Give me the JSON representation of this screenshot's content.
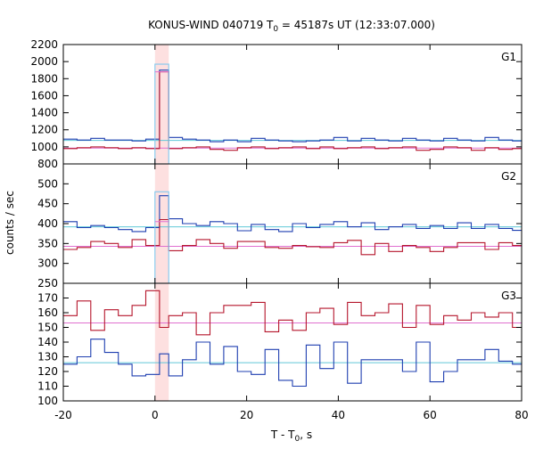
{
  "chart_data": {
    "type": "line",
    "title_main": "KONUS-WIND 040719 T",
    "title_sub": "0",
    "title_rest": " = 45187s UT (12:33:07.000)",
    "xlabel_main": "T - T",
    "xlabel_sub": "0",
    "xlabel_rest": ", s",
    "ylabel": "counts / sec",
    "xlim": [
      -20,
      80
    ],
    "x_ticks": [
      -20,
      0,
      20,
      40,
      60,
      80
    ],
    "x_tick_labels": [
      "-20",
      "0",
      "20",
      "40",
      "60",
      "80"
    ],
    "highlight_interval": [
      0,
      3
    ],
    "highlight_color": "#fde0e0",
    "panels": [
      {
        "name": "G1",
        "ylim": [
          800,
          2200
        ],
        "y_ticks": [
          800,
          1000,
          1200,
          1400,
          1600,
          1800,
          2000,
          2200
        ],
        "y_tick_labels": [
          "800",
          "1000",
          "1200",
          "1400",
          "1600",
          "1800",
          "2000",
          "2200"
        ],
        "x_edges": [
          -20,
          -17,
          -14,
          -11,
          -8,
          -5,
          -2,
          1,
          3,
          6,
          9,
          12,
          15,
          18,
          21,
          24,
          27,
          30,
          33,
          36,
          39,
          42,
          45,
          48,
          51,
          54,
          57,
          60,
          63,
          66,
          69,
          72,
          75,
          78,
          81
        ],
        "series": [
          {
            "color": "#1f3fb0",
            "values": [
              1090,
              1080,
              1100,
              1080,
              1080,
              1070,
              1090,
              1900,
              1110,
              1090,
              1080,
              1060,
              1080,
              1060,
              1100,
              1080,
              1070,
              1060,
              1070,
              1080,
              1110,
              1070,
              1100,
              1080,
              1070,
              1100,
              1080,
              1070,
              1100,
              1080,
              1070,
              1110,
              1080,
              1070
            ]
          },
          {
            "color": "#b5162c",
            "values": [
              980,
              990,
              1000,
              990,
              980,
              990,
              980,
              1880,
              980,
              990,
              1000,
              970,
              960,
              990,
              1000,
              980,
              990,
              1000,
              980,
              1000,
              980,
              990,
              1000,
              980,
              990,
              1000,
              960,
              970,
              1000,
              990,
              960,
              990,
              970,
              980
            ]
          }
        ],
        "peak_box": {
          "x": [
            0,
            3
          ],
          "y_top": 1970,
          "color": "#80c8ee"
        },
        "peak_mark": {
          "x": [
            0,
            3
          ],
          "y": 1880,
          "color": "#e070d0"
        },
        "background_lines": [
          {
            "y": 1075,
            "color": "#60c8d8"
          },
          {
            "y": 985,
            "color": "#e070d0"
          }
        ]
      },
      {
        "name": "G2",
        "ylim": [
          250,
          550
        ],
        "y_ticks": [
          250,
          300,
          350,
          400,
          450,
          500
        ],
        "y_tick_labels": [
          "250",
          "300",
          "350",
          "400",
          "450",
          "500"
        ],
        "x_edges": [
          -20,
          -17,
          -14,
          -11,
          -8,
          -5,
          -2,
          1,
          3,
          6,
          9,
          12,
          15,
          18,
          21,
          24,
          27,
          30,
          33,
          36,
          39,
          42,
          45,
          48,
          51,
          54,
          57,
          60,
          63,
          66,
          69,
          72,
          75,
          78,
          81
        ],
        "series": [
          {
            "color": "#1f3fb0",
            "values": [
              405,
              390,
              395,
              390,
              385,
              380,
              390,
              470,
              412,
              400,
              395,
              405,
              400,
              382,
              398,
              385,
              380,
              400,
              390,
              398,
              405,
              392,
              402,
              385,
              392,
              398,
              388,
              395,
              388,
              402,
              388,
              398,
              388,
              383
            ]
          },
          {
            "color": "#b5162c",
            "values": [
              335,
              340,
              355,
              350,
              340,
              360,
              345,
              410,
              332,
              345,
              360,
              350,
              338,
              355,
              355,
              340,
              338,
              345,
              342,
              340,
              352,
              358,
              322,
              350,
              330,
              345,
              340,
              330,
              340,
              352,
              352,
              335,
              352,
              345
            ]
          }
        ],
        "peak_box": {
          "x": [
            0,
            3
          ],
          "y_top": 480,
          "color": "#80c8ee"
        },
        "peak_mark": {
          "x": [
            0,
            3
          ],
          "y": 405,
          "color": "#e070d0"
        },
        "background_lines": [
          {
            "y": 392,
            "color": "#60c8d8"
          },
          {
            "y": 343,
            "color": "#e070d0"
          }
        ]
      },
      {
        "name": "G3",
        "ylim": [
          100,
          180
        ],
        "y_ticks": [
          100,
          110,
          120,
          130,
          140,
          150,
          160,
          170
        ],
        "y_tick_labels": [
          "100",
          "110",
          "120",
          "130",
          "140",
          "150",
          "160",
          "170"
        ],
        "x_edges": [
          -20,
          -17,
          -14,
          -11,
          -8,
          -5,
          -2,
          1,
          3,
          6,
          9,
          12,
          15,
          18,
          21,
          24,
          27,
          30,
          33,
          36,
          39,
          42,
          45,
          48,
          51,
          54,
          57,
          60,
          63,
          66,
          69,
          72,
          75,
          78,
          81
        ],
        "series": [
          {
            "color": "#1f3fb0",
            "values": [
              125,
              130,
              142,
              133,
              125,
              117,
              118,
              132,
              117,
              128,
              140,
              125,
              137,
              120,
              118,
              135,
              114,
              110,
              138,
              122,
              140,
              112,
              128,
              128,
              128,
              120,
              140,
              113,
              120,
              128,
              128,
              135,
              127,
              125
            ]
          },
          {
            "color": "#b5162c",
            "values": [
              158,
              168,
              148,
              162,
              158,
              165,
              175,
              150,
              158,
              160,
              145,
              160,
              165,
              165,
              167,
              147,
              155,
              148,
              160,
              163,
              152,
              167,
              158,
              160,
              166,
              150,
              165,
              152,
              158,
              155,
              160,
              157,
              160,
              150
            ]
          }
        ],
        "peak_box": null,
        "peak_mark": null,
        "background_lines": [
          {
            "y": 126,
            "color": "#60c8d8"
          },
          {
            "y": 153,
            "color": "#e070d0"
          }
        ]
      }
    ]
  }
}
